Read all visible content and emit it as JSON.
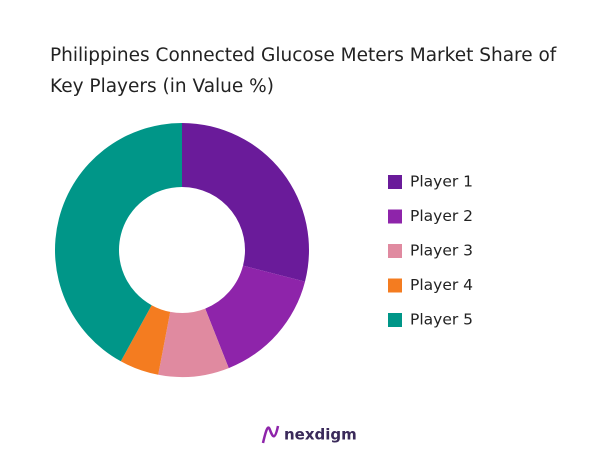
{
  "chart_data": {
    "type": "donut",
    "title": "Philippines Connected Glucose Meters Market Share of Key Players (in Value %)",
    "categories": [
      "Player 1",
      "Player 2",
      "Player 3",
      "Player 4",
      "Player 5"
    ],
    "values": [
      29,
      15,
      9,
      5,
      42
    ],
    "colors": [
      "#6a1b9a",
      "#8e24aa",
      "#e08aa0",
      "#f47c20",
      "#009688"
    ],
    "legend": "right"
  },
  "footer": {
    "logo": "nexdigm"
  }
}
